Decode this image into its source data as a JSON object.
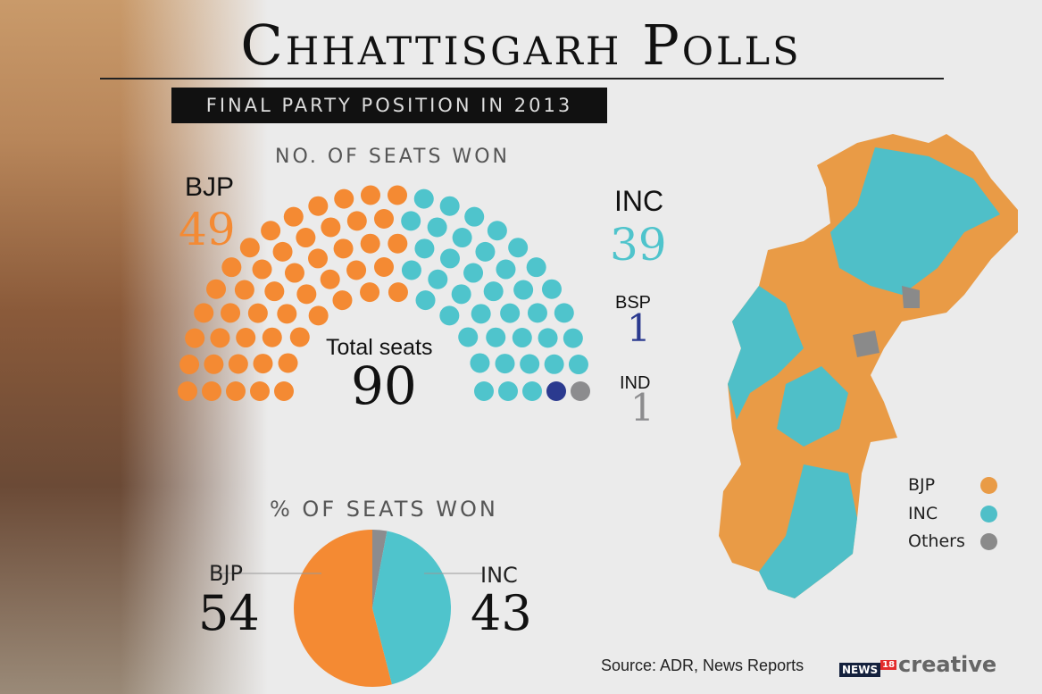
{
  "title": "Chhattisgarh Polls",
  "subtitle": "FINAL PARTY POSITION IN 2013",
  "seats_header": "NO. OF SEATS WON",
  "pct_header": "% OF SEATS WON",
  "total_label": "Total seats",
  "total_value": "90",
  "source": "Source: ADR, News Reports",
  "logo": {
    "news": "NEWS",
    "num": "18",
    "creative": "creative"
  },
  "colors": {
    "BJP": "#f48a33",
    "INC": "#4fc4cc",
    "BSP": "#2b3a8f",
    "IND": "#8c8c8e",
    "map_bjp": "#e99b46",
    "map_inc": "#4fbfc8",
    "map_oth": "#8a8a8a"
  },
  "parties": {
    "bjp": {
      "name": "BJP",
      "seats": "49",
      "pct": "54"
    },
    "inc": {
      "name": "INC",
      "seats": "39",
      "pct": "43"
    },
    "bsp": {
      "name": "BSP",
      "seats": "1"
    },
    "ind": {
      "name": "IND",
      "seats": "1"
    }
  },
  "legend": [
    {
      "label": "BJP"
    },
    {
      "label": "INC"
    },
    {
      "label": "Others"
    }
  ],
  "chart_data": [
    {
      "type": "parliament",
      "title": "NO. OF SEATS WON",
      "categories": [
        "BJP",
        "INC",
        "BSP",
        "IND"
      ],
      "values": [
        49,
        39,
        1,
        1
      ],
      "total": 90
    },
    {
      "type": "pie",
      "title": "% OF SEATS WON",
      "categories": [
        "Others",
        "INC",
        "BJP"
      ],
      "values": [
        3,
        43,
        54
      ],
      "labels_shown": [
        "BJP",
        "INC"
      ]
    }
  ]
}
